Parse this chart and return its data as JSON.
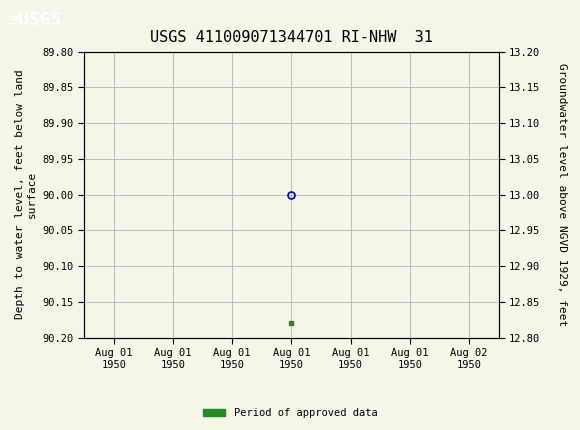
{
  "title": "USGS 411009071344701 RI-NHW  31",
  "ylabel_left": "Depth to water level, feet below land\nsurface",
  "ylabel_right": "Groundwater level above NGVD 1929, feet",
  "ylim_left": [
    89.8,
    90.2
  ],
  "ylim_right": [
    12.8,
    13.2
  ],
  "yticks_left": [
    89.8,
    89.85,
    89.9,
    89.95,
    90.0,
    90.05,
    90.1,
    90.15,
    90.2
  ],
  "yticks_right": [
    13.2,
    13.15,
    13.1,
    13.05,
    13.0,
    12.95,
    12.9,
    12.85,
    12.8
  ],
  "data_point_y": 90.0,
  "green_point_y": 90.18,
  "x_tick_count": 7,
  "x_data_tick_index": 3,
  "header_bg_color": "#1a7040",
  "plot_bg_color": "#f5f5e8",
  "grid_color": "#bbbbbb",
  "border_color": "#000000",
  "title_fontsize": 11,
  "axis_label_fontsize": 8,
  "tick_fontsize": 7.5,
  "legend_label": "Period of approved data",
  "legend_color": "#228B22",
  "data_marker_color": "#0000cc",
  "approved_marker_color": "#228B22",
  "font_family": "DejaVu Sans Mono"
}
